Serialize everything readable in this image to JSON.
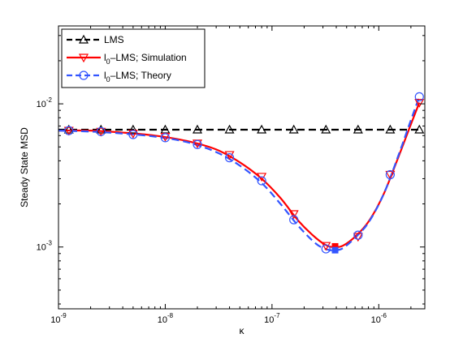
{
  "chart_data": {
    "type": "line",
    "title": "",
    "xlabel": "κ",
    "ylabel": "Steady State MSD",
    "xscale": "log",
    "yscale": "log",
    "xlim": [
      1e-09,
      2.7e-06
    ],
    "ylim": [
      0.00037,
      0.035
    ],
    "x_ticks": [
      {
        "value": 1e-09,
        "base": "10",
        "exp": "-9"
      },
      {
        "value": 1e-08,
        "base": "10",
        "exp": "-8"
      },
      {
        "value": 1e-07,
        "base": "10",
        "exp": "-7"
      },
      {
        "value": 1e-06,
        "base": "10",
        "exp": "-6"
      }
    ],
    "y_ticks": [
      {
        "value": 0.001,
        "base": "10",
        "exp": "-3"
      },
      {
        "value": 0.01,
        "base": "10",
        "exp": "-2"
      }
    ],
    "grid": false,
    "legend": {
      "position": "top-left",
      "entries": [
        {
          "series": 0,
          "pre": "LMS",
          "sub": "",
          "post": ""
        },
        {
          "series": 1,
          "pre": "l",
          "sub": "0",
          "post": "–LMS; Simulation"
        },
        {
          "series": 2,
          "pre": "l",
          "sub": "0",
          "post": "–LMS; Theory"
        }
      ]
    },
    "series": [
      {
        "name": "LMS",
        "color": "#000000",
        "line_style": "dashed",
        "marker": "triangle-up",
        "x": [
          1.25e-09,
          2.5e-09,
          5e-09,
          1e-08,
          2e-08,
          4e-08,
          8e-08,
          1.6e-07,
          3.2e-07,
          6.4e-07,
          1.28e-06,
          2.4e-06
        ],
        "y": [
          0.0066,
          0.0066,
          0.0066,
          0.0066,
          0.0066,
          0.0066,
          0.0066,
          0.0066,
          0.0066,
          0.0066,
          0.0066,
          0.0066
        ],
        "curve_x": [
          1e-09,
          2.4e-06
        ],
        "curve_y": [
          0.0066,
          0.0066
        ]
      },
      {
        "name": "l0–LMS; Simulation",
        "color": "#ff0000",
        "line_style": "solid",
        "marker": "triangle-down",
        "x": [
          1.25e-09,
          2.5e-09,
          5e-09,
          1e-08,
          2e-08,
          4e-08,
          8e-08,
          1.6e-07,
          3.2e-07,
          6.4e-07,
          1.28e-06,
          2.4e-06
        ],
        "y": [
          0.0065,
          0.0064,
          0.0062,
          0.0059,
          0.0053,
          0.0044,
          0.0031,
          0.0017,
          0.00102,
          0.00118,
          0.0032,
          0.0102
        ],
        "curve_x": [
          1e-09,
          2e-09,
          4e-09,
          8e-09,
          1.6e-08,
          3e-08,
          5e-08,
          8e-08,
          1.2e-07,
          1.8e-07,
          2.6e-07,
          3.3e-07,
          3.9e-07,
          4.6e-07,
          6e-07,
          8e-07,
          1.1e-06,
          1.5e-06,
          2e-06,
          2.4e-06
        ],
        "curve_y": [
          0.0065,
          0.0065,
          0.0063,
          0.006,
          0.0055,
          0.0048,
          0.0039,
          0.003,
          0.0022,
          0.0015,
          0.00115,
          0.00102,
          0.001,
          0.00102,
          0.00118,
          0.0015,
          0.0023,
          0.0041,
          0.0072,
          0.0102
        ],
        "special_marker": {
          "x": 3.9e-07,
          "y": 0.00101
        }
      },
      {
        "name": "l0–LMS; Theory",
        "color": "#3355ff",
        "line_style": "dashed",
        "marker": "circle",
        "x": [
          1.25e-09,
          2.5e-09,
          5e-09,
          1e-08,
          2e-08,
          4e-08,
          8e-08,
          1.6e-07,
          3.2e-07,
          6.4e-07,
          1.28e-06,
          2.4e-06
        ],
        "y": [
          0.0065,
          0.0064,
          0.0061,
          0.0058,
          0.0052,
          0.0042,
          0.0029,
          0.00155,
          0.00097,
          0.00121,
          0.0032,
          0.0112
        ],
        "curve_x": [
          1e-09,
          2e-09,
          4e-09,
          8e-09,
          1.6e-08,
          3e-08,
          5e-08,
          8e-08,
          1.2e-07,
          1.8e-07,
          2.6e-07,
          3.3e-07,
          3.9e-07,
          4.6e-07,
          6e-07,
          8e-07,
          1.1e-06,
          1.5e-06,
          2e-06,
          2.4e-06
        ],
        "curve_y": [
          0.0065,
          0.0064,
          0.0062,
          0.0059,
          0.0054,
          0.0046,
          0.0037,
          0.0028,
          0.002,
          0.00138,
          0.00105,
          0.00096,
          0.00095,
          0.00098,
          0.00116,
          0.00148,
          0.0023,
          0.0042,
          0.0077,
          0.0112
        ],
        "special_marker": {
          "x": 3.9e-07,
          "y": 0.00095
        }
      }
    ]
  }
}
